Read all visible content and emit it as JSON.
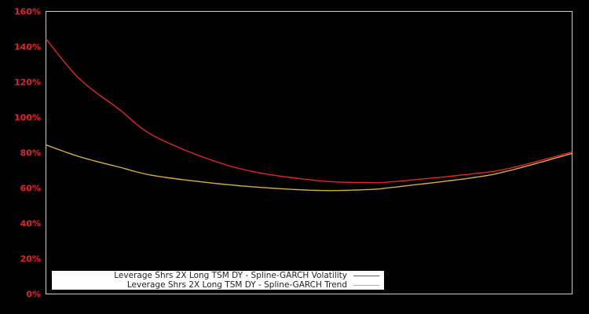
{
  "chart_data": {
    "type": "line",
    "title": "",
    "xlabel": "",
    "ylabel": "",
    "ylim": [
      0,
      160
    ],
    "y_ticks": [
      "0%",
      "20%",
      "40%",
      "60%",
      "80%",
      "100%",
      "120%",
      "140%",
      "160%"
    ],
    "y_tick_values": [
      0,
      20,
      40,
      60,
      80,
      100,
      120,
      140,
      160
    ],
    "grid": false,
    "legend_position": "lower-left",
    "x": [
      0,
      0.063,
      0.137,
      0.212,
      0.36,
      0.51,
      0.61,
      0.66,
      0.81,
      0.88,
      1.0
    ],
    "series": [
      {
        "name": "Leverage Shrs 2X Long TSM DY - Spline-GARCH Volatility",
        "color": "#e3222b",
        "values": [
          144.4,
          122.0,
          105.0,
          88.4,
          71.6,
          64.4,
          63.1,
          63.6,
          68.0,
          71.1,
          80.4
        ]
      },
      {
        "name": "Leverage Shrs 2X Long TSM DY - Spline-GARCH Trend",
        "color": "#d4b03c",
        "values": [
          84.4,
          77.8,
          72.0,
          66.7,
          61.5,
          58.7,
          59.1,
          60.4,
          65.8,
          69.8,
          79.6
        ]
      }
    ]
  },
  "legend": {
    "items": [
      {
        "label": "Leverage Shrs 2X Long TSM DY - Spline-GARCH Volatility",
        "color": "#e3222b"
      },
      {
        "label": "Leverage Shrs 2X Long TSM DY - Spline-GARCH Trend",
        "color": "#d4b03c"
      }
    ]
  },
  "colors": {
    "background": "#000000",
    "axis": "#cccccc",
    "tick_label": "#e3222b"
  }
}
